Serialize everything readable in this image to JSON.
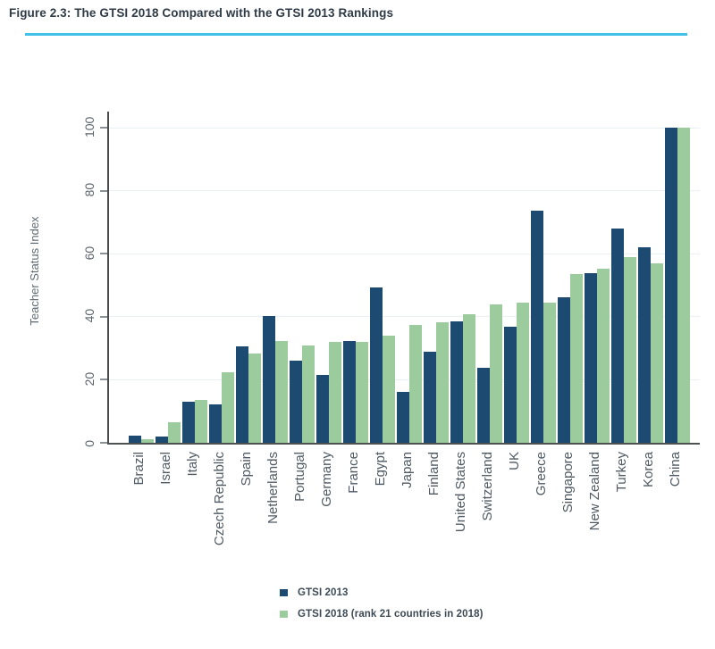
{
  "figure": {
    "title": "Figure 2.3: The GTSI 2018 Compared with the GTSI 2013 Rankings"
  },
  "chart_data": {
    "type": "bar",
    "title": "Figure 2.3: The GTSI 2018 Compared with the GTSI 2013 Rankings",
    "xlabel": "",
    "ylabel": "Teacher Status Index",
    "ylim": [
      0,
      100
    ],
    "yticks": [
      0,
      20,
      40,
      60,
      80,
      100
    ],
    "grid": true,
    "legend_position": "bottom",
    "categories": [
      "Brazil",
      "Israel",
      "Italy",
      "Czech Republic",
      "Spain",
      "Netherlands",
      "Portugal",
      "Germany",
      "France",
      "Egypt",
      "Japan",
      "Finland",
      "United States",
      "Switzerland",
      "UK",
      "Greece",
      "Singapore",
      "New Zealand",
      "Turkey",
      "Korea",
      "China"
    ],
    "series": [
      {
        "name": "GTSI 2013",
        "color": "#1d4a71",
        "values": [
          2.4,
          2.0,
          13.0,
          12.1,
          30.7,
          40.3,
          26.0,
          21.6,
          32.3,
          49.3,
          16.2,
          28.9,
          38.4,
          23.8,
          36.7,
          73.7,
          46.3,
          53.8,
          68.0,
          62.0,
          100
        ]
      },
      {
        "name": "GTSI 2018 (rank 21 countries in 2018)",
        "color": "#9ccb9d",
        "values": [
          1.0,
          6.6,
          13.6,
          22.5,
          28.3,
          32.2,
          31.0,
          31.9,
          31.9,
          33.9,
          37.3,
          38.3,
          40.9,
          44.0,
          44.6,
          44.5,
          53.5,
          55.3,
          58.9,
          56.9,
          100
        ]
      }
    ]
  },
  "colors": {
    "title_rule": "#41c0e8",
    "axis": "#4a4b4d",
    "gridline": "#e8f0f4",
    "tick": "#8a9298",
    "title_text": "#2e3b47",
    "label_text": "#4f5a63"
  }
}
